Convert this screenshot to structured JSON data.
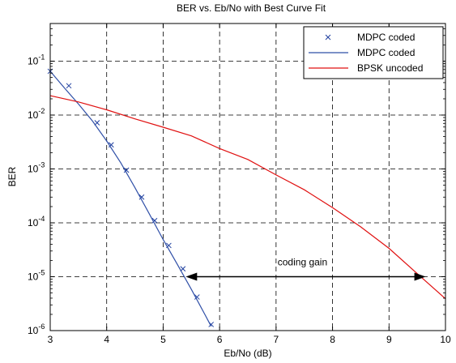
{
  "chart_data": {
    "type": "line",
    "title": "BER vs. Eb/No with Best Curve Fit",
    "xlabel": "Eb/No (dB)",
    "ylabel": "BER",
    "xlim": [
      3,
      10
    ],
    "ylim": [
      1e-06,
      0.5
    ],
    "yscale": "log",
    "grid": true,
    "legend_position": "top-right",
    "x_ticks": [
      "3",
      "4",
      "5",
      "6",
      "7",
      "8",
      "9",
      "10"
    ],
    "y_ticks": [
      {
        "base": "10",
        "exp": "-1",
        "value": 0.1
      },
      {
        "base": "10",
        "exp": "-2",
        "value": 0.01
      },
      {
        "base": "10",
        "exp": "-3",
        "value": 0.001
      },
      {
        "base": "10",
        "exp": "-4",
        "value": 0.0001
      },
      {
        "base": "10",
        "exp": "-5",
        "value": 1e-05
      },
      {
        "base": "10",
        "exp": "-6",
        "value": 1e-06
      }
    ],
    "series": [
      {
        "name": "MDPC coded",
        "style": "markers",
        "marker": "x",
        "color": "#1f3f9f",
        "x": [
          3.0,
          3.33,
          3.83,
          4.08,
          4.35,
          4.62,
          4.85,
          5.1,
          5.35,
          5.6,
          5.85
        ],
        "y": [
          0.065,
          0.035,
          0.0072,
          0.0028,
          0.00095,
          0.0003,
          0.00011,
          3.8e-05,
          1.4e-05,
          4.2e-06,
          1.3e-06
        ]
      },
      {
        "name": "MDPC coded",
        "style": "line",
        "color": "#2f4fa7",
        "x": [
          3.0,
          3.25,
          3.5,
          3.75,
          4.0,
          4.25,
          4.5,
          4.75,
          5.0,
          5.25,
          5.5,
          5.75,
          5.85
        ],
        "y": [
          0.065,
          0.032,
          0.016,
          0.0077,
          0.0033,
          0.0013,
          0.00045,
          0.00015,
          4.9e-05,
          1.7e-05,
          5.8e-06,
          1.9e-06,
          1.2e-06
        ]
      },
      {
        "name": "BPSK uncoded",
        "style": "line",
        "color": "#e01010",
        "x": [
          3.0,
          3.5,
          4.0,
          4.5,
          5.0,
          5.5,
          6.0,
          6.5,
          7.0,
          7.5,
          8.0,
          8.5,
          9.0,
          9.5,
          10.0
        ],
        "y": [
          0.0229,
          0.0175,
          0.0125,
          0.0085,
          0.00595,
          0.0041,
          0.00239,
          0.0015,
          0.000773,
          0.00041,
          0.000191,
          8.4e-05,
          3.36e-05,
          1.14e-05,
          3.9e-06
        ]
      }
    ],
    "annotations": [
      {
        "text": "coding gain",
        "arrow": {
          "x1": 5.4,
          "x2": 9.65,
          "y": 1e-05
        }
      }
    ]
  }
}
